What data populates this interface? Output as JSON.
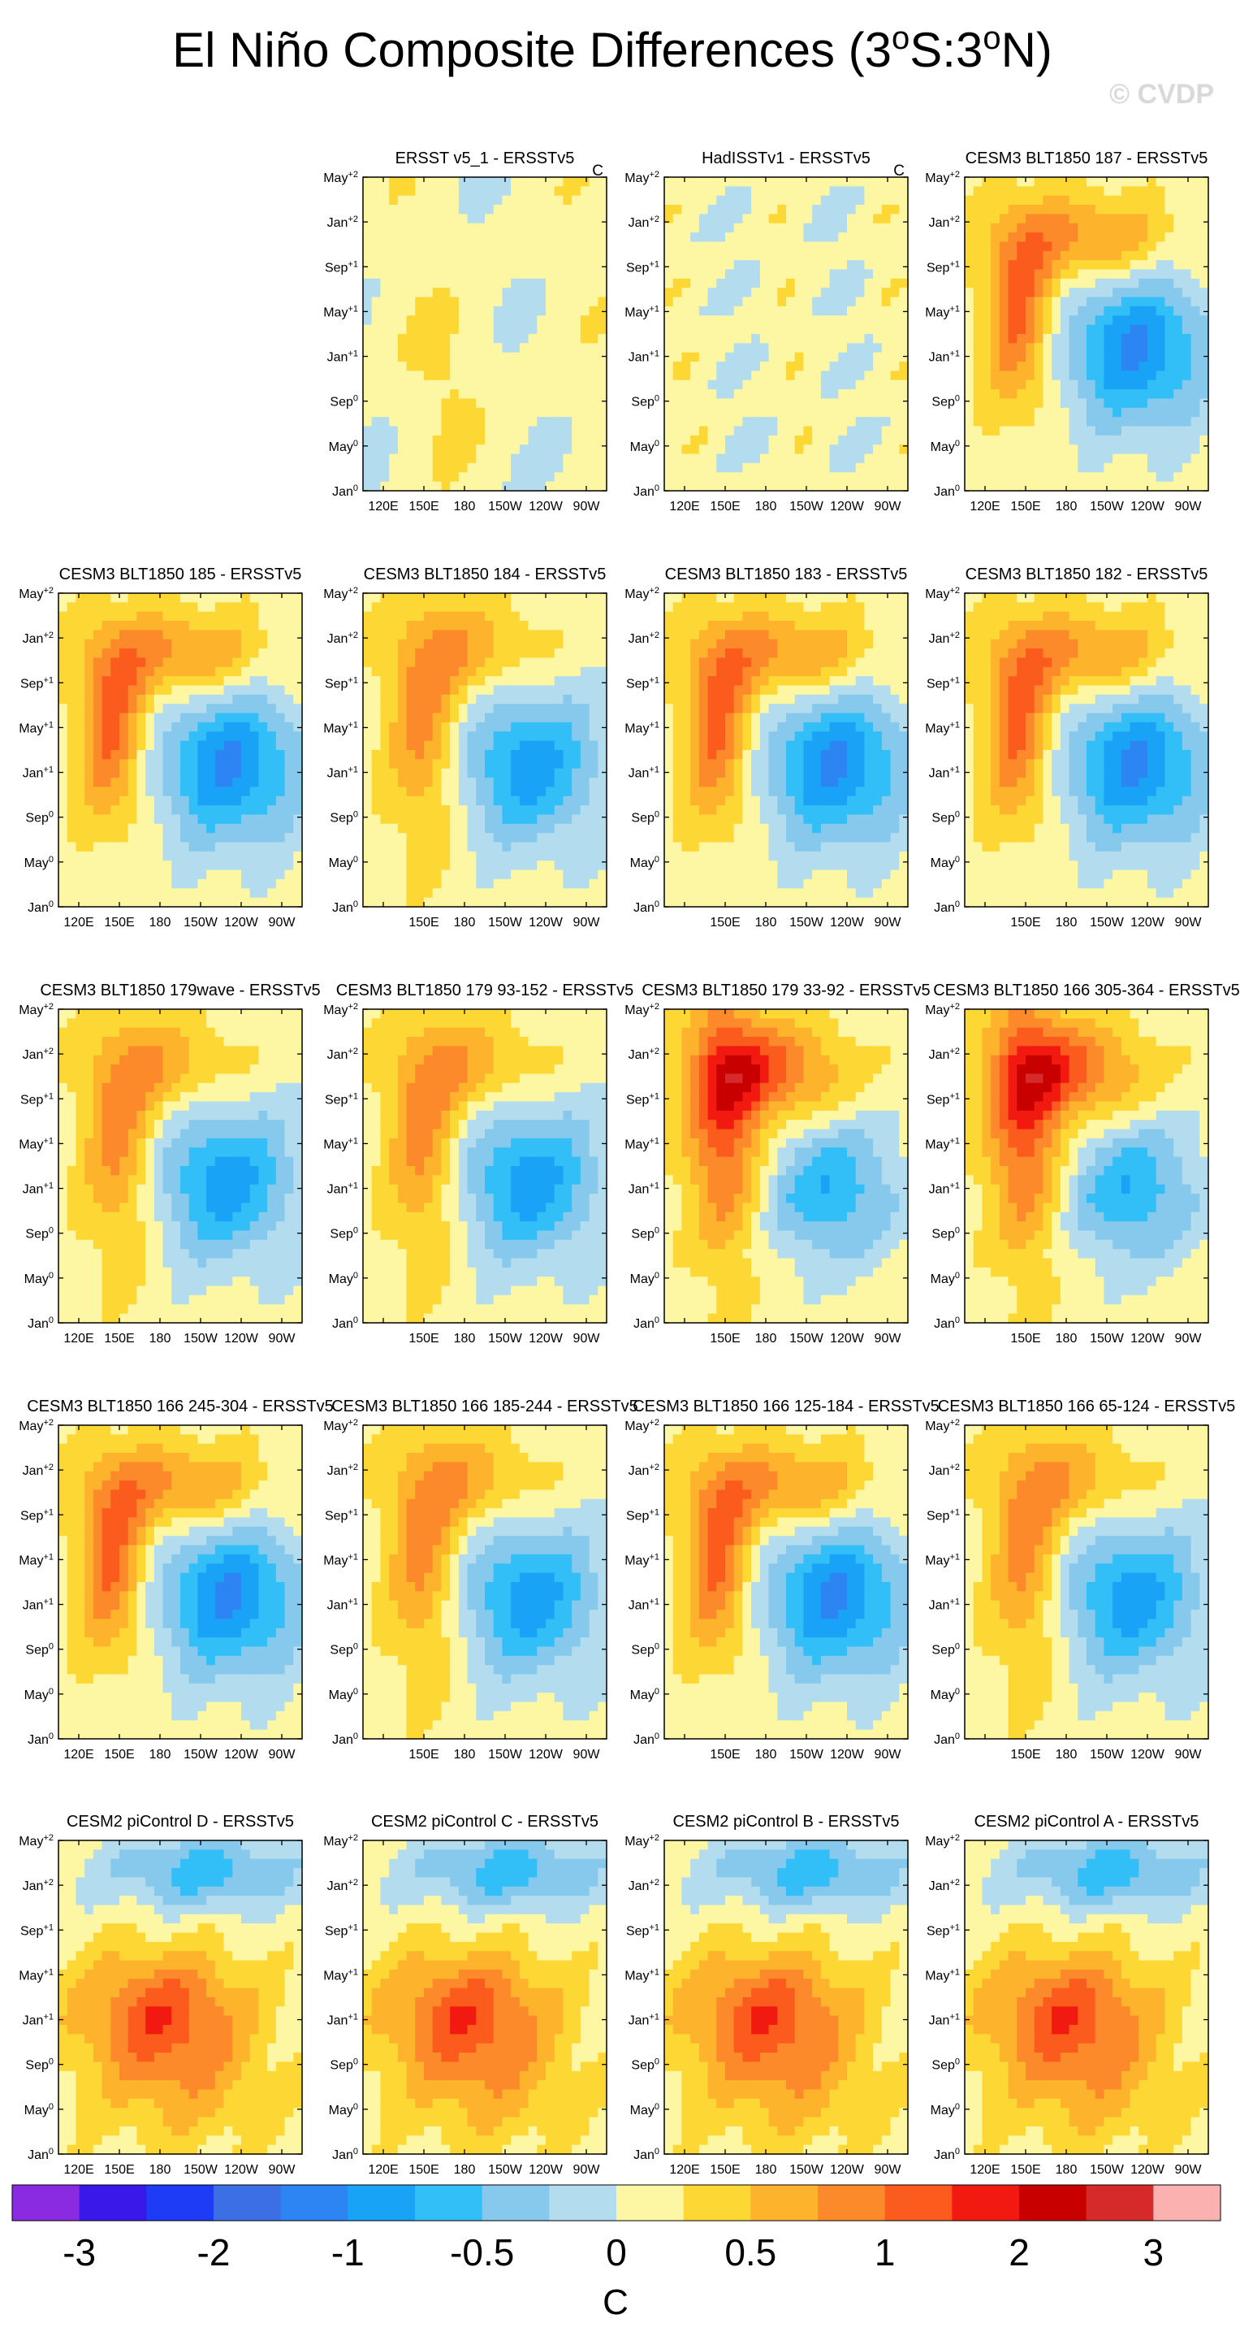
{
  "figure": {
    "title": "El Niño Composite Differences (3°S:3°N)",
    "watermark": "© CVDP"
  },
  "chart_data": {
    "type": "heatmap",
    "description": "Hovmöller composite differences of equatorial SST (model minus observations) across longitude vs lag time.",
    "x_axis": {
      "ticks": [
        "120E",
        "150E",
        "180",
        "150W",
        "120W",
        "90W"
      ],
      "range": [
        "110E",
        "80W"
      ]
    },
    "y_axis": {
      "ticks": [
        {
          "base": "Jan",
          "sup": "0"
        },
        {
          "base": "May",
          "sup": "0"
        },
        {
          "base": "Sep",
          "sup": "0"
        },
        {
          "base": "Jan",
          "sup": "+1"
        },
        {
          "base": "May",
          "sup": "+1"
        },
        {
          "base": "Sep",
          "sup": "+1"
        },
        {
          "base": "Jan",
          "sup": "+2"
        },
        {
          "base": "May",
          "sup": "+2"
        }
      ]
    },
    "colorbar": {
      "levels": [
        "-3",
        "-2",
        "-1",
        "-0.5",
        "0",
        "0.5",
        "1",
        "2",
        "3"
      ],
      "colors": [
        "#8a2be2",
        "#3a18ea",
        "#1e3cf5",
        "#3d6fe4",
        "#2c85f3",
        "#19a3f7",
        "#32bef7",
        "#87c9ec",
        "#b3dcee",
        "#fdf7a4",
        "#fdd835",
        "#fdb32b",
        "#fc8a2b",
        "#fb5b1c",
        "#f21a10",
        "#c80000",
        "#d62a2a",
        "#fcb1b1"
      ],
      "units": "C"
    },
    "panels": [
      {
        "title": "ERSST v5_1 - ERSSTv5",
        "units": "C",
        "pattern": "obs_a"
      },
      {
        "title": "HadISSTv1 - ERSSTv5",
        "units": "C",
        "pattern": "obs_b"
      },
      {
        "title": "CESM3 BLT1850 187 - ERSSTv5",
        "units": "",
        "pattern": "model_a"
      },
      {
        "title": "CESM3 BLT1850 185 - ERSSTv5",
        "units": "",
        "pattern": "model_a"
      },
      {
        "title": "CESM3 BLT1850 184 - ERSSTv5",
        "units": "",
        "pattern": "model_b"
      },
      {
        "title": "CESM3 BLT1850 183 - ERSSTv5",
        "units": "",
        "pattern": "model_a"
      },
      {
        "title": "CESM3 BLT1850 182 - ERSSTv5",
        "units": "",
        "pattern": "model_a"
      },
      {
        "title": "CESM3 BLT1850 179wave - ERSSTv5",
        "units": "",
        "pattern": "model_b"
      },
      {
        "title": "CESM3 BLT1850 179 93-152 - ERSSTv5",
        "units": "",
        "pattern": "model_b"
      },
      {
        "title": "CESM3 BLT1850 179 33-92 - ERSSTv5",
        "units": "",
        "pattern": "model_c"
      },
      {
        "title": "CESM3 BLT1850 166 305-364 - ERSSTv5",
        "units": "",
        "pattern": "model_c"
      },
      {
        "title": "CESM3 BLT1850 166 245-304 - ERSSTv5",
        "units": "",
        "pattern": "model_a"
      },
      {
        "title": "CESM3 BLT1850 166 185-244 - ERSSTv5",
        "units": "",
        "pattern": "model_b"
      },
      {
        "title": "CESM3 BLT1850 166 125-184 - ERSSTv5",
        "units": "",
        "pattern": "model_a"
      },
      {
        "title": "CESM3 BLT1850 166 65-124 - ERSSTv5",
        "units": "",
        "pattern": "model_b"
      },
      {
        "title": "CESM2 piControl D - ERSSTv5",
        "units": "",
        "pattern": "cesm2"
      },
      {
        "title": "CESM2 piControl C - ERSSTv5",
        "units": "",
        "pattern": "cesm2"
      },
      {
        "title": "CESM2 piControl B - ERSSTv5",
        "units": "",
        "pattern": "cesm2"
      },
      {
        "title": "CESM2 piControl A - ERSSTv5",
        "units": "",
        "pattern": "cesm2"
      }
    ]
  }
}
